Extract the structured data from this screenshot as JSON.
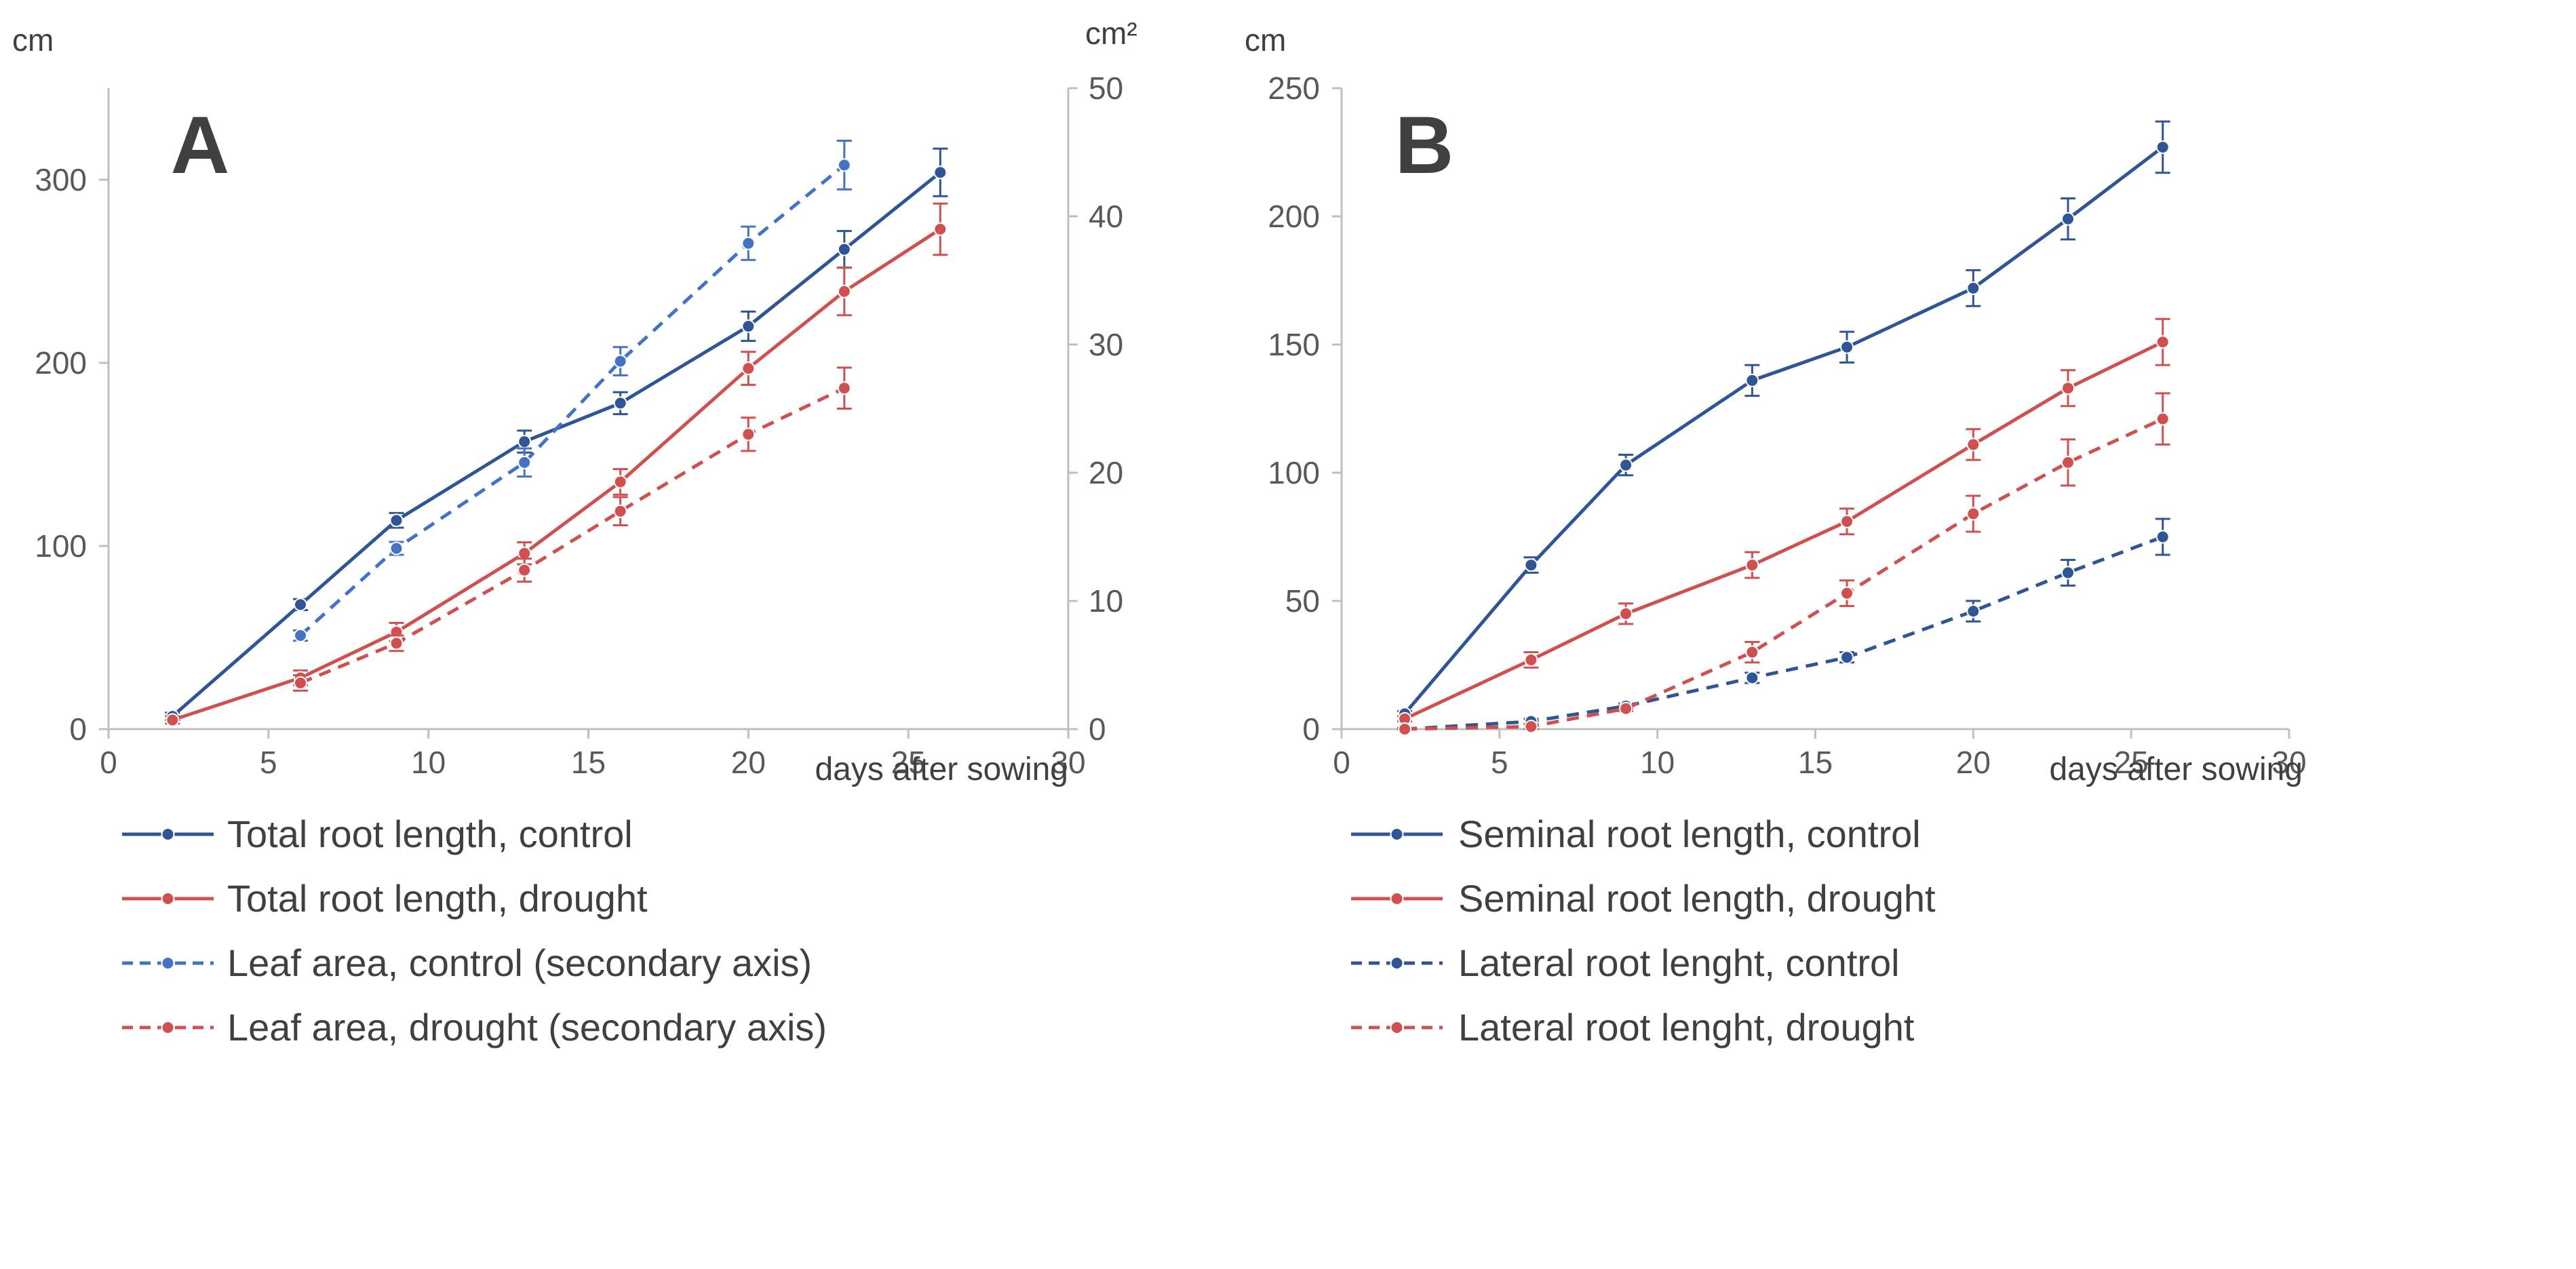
{
  "colors": {
    "dark_blue": "#2F5597",
    "light_blue": "#4472C4",
    "red": "#D05050",
    "axis": "#BFBFBF",
    "text": "#404040"
  },
  "chart_data": [
    {
      "type": "line",
      "panel_label": "A",
      "xlabel": "days after sowing",
      "ylabel": "cm",
      "y2label": "cm²",
      "xlim": [
        0,
        30
      ],
      "ylim": [
        0,
        350
      ],
      "y2lim": [
        0,
        50
      ],
      "xticks": [
        "0",
        "5",
        "10",
        "15",
        "20",
        "25",
        "30"
      ],
      "yticks": [
        "0",
        "100",
        "200",
        "300"
      ],
      "y2ticks": [
        "0",
        "10",
        "20",
        "30",
        "40",
        "50"
      ],
      "series": [
        {
          "name": "Total root length, control",
          "axis": "primary",
          "color": "#2F5597",
          "dashed": false,
          "x": [
            2,
            6,
            9,
            13,
            16,
            20,
            23,
            26
          ],
          "y": [
            7,
            68,
            114,
            157,
            178,
            220,
            262,
            304
          ],
          "err": [
            2,
            3,
            4,
            6,
            6,
            8,
            10,
            13
          ]
        },
        {
          "name": "Total root length, drought",
          "axis": "primary",
          "color": "#D05050",
          "dashed": false,
          "x": [
            2,
            6,
            9,
            13,
            16,
            20,
            23,
            26
          ],
          "y": [
            5,
            28,
            53,
            96,
            135,
            197,
            239,
            273
          ],
          "err": [
            2,
            4,
            5,
            6,
            7,
            9,
            13,
            14
          ]
        },
        {
          "name": "Leaf area, control (secondary axis)",
          "axis": "secondary",
          "color": "#4472C4",
          "dashed": true,
          "x": [
            6,
            9,
            13,
            16,
            20,
            23
          ],
          "y": [
            7.3,
            14.1,
            20.8,
            28.7,
            37.9,
            44.0
          ],
          "err": [
            0.4,
            0.5,
            1.1,
            1.1,
            1.3,
            1.9
          ]
        },
        {
          "name": "Leaf area, drought (secondary axis)",
          "axis": "secondary",
          "color": "#D05050",
          "dashed": true,
          "x": [
            6,
            9,
            13,
            16,
            20,
            23
          ],
          "y": [
            3.6,
            6.7,
            12.4,
            17.0,
            23.0,
            26.6
          ],
          "err": [
            0.6,
            0.6,
            0.9,
            1.1,
            1.3,
            1.6
          ]
        }
      ]
    },
    {
      "type": "line",
      "panel_label": "B",
      "xlabel": "days after sowing",
      "ylabel": "cm",
      "xlim": [
        0,
        30
      ],
      "ylim": [
        0,
        250
      ],
      "xticks": [
        "0",
        "5",
        "10",
        "15",
        "20",
        "25",
        "30"
      ],
      "yticks": [
        "0",
        "50",
        "100",
        "150",
        "200",
        "250"
      ],
      "series": [
        {
          "name": "Seminal root length, control",
          "color": "#2F5597",
          "dashed": false,
          "x": [
            2,
            6,
            9,
            13,
            16,
            20,
            23,
            26
          ],
          "y": [
            6,
            64,
            103,
            136,
            149,
            172,
            199,
            227
          ],
          "err": [
            1,
            3,
            4,
            6,
            6,
            7,
            8,
            10
          ]
        },
        {
          "name": "Seminal root length, drought",
          "color": "#D05050",
          "dashed": false,
          "x": [
            2,
            6,
            9,
            13,
            16,
            20,
            23,
            26
          ],
          "y": [
            4,
            27,
            45,
            64,
            81,
            111,
            133,
            151
          ],
          "err": [
            1,
            3,
            4,
            5,
            5,
            6,
            7,
            9
          ]
        },
        {
          "name": "Lateral root lenght, control",
          "color": "#2F5597",
          "dashed": true,
          "x": [
            2,
            6,
            9,
            13,
            16,
            20,
            23,
            26
          ],
          "y": [
            0,
            3,
            9,
            20,
            28,
            46,
            61,
            75
          ],
          "err": [
            0.5,
            1,
            1,
            2,
            2,
            4,
            5,
            7
          ]
        },
        {
          "name": "Lateral root lenght, drought",
          "color": "#D05050",
          "dashed": true,
          "x": [
            2,
            6,
            9,
            13,
            16,
            20,
            23,
            26
          ],
          "y": [
            0,
            1,
            8,
            30,
            53,
            84,
            104,
            121
          ],
          "err": [
            0.5,
            1,
            1,
            4,
            5,
            7,
            9,
            10
          ]
        }
      ]
    }
  ]
}
